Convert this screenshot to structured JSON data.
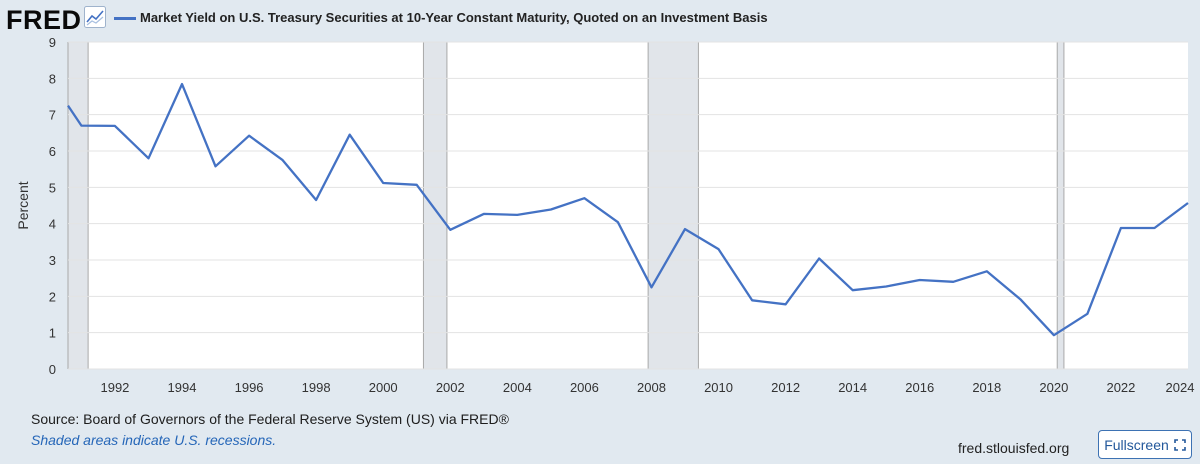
{
  "header": {
    "logo_text": "FRED",
    "series_title": "Market Yield on U.S. Treasury Securities at 10-Year Constant Maturity, Quoted on an Investment Basis"
  },
  "footer": {
    "source": "Source: Board of Governors of the Federal Reserve System (US) via FRED®",
    "note": "Shaded areas indicate U.S. recessions.",
    "site": "fred.stlouisfed.org",
    "fullscreen_label": "Fullscreen"
  },
  "colors": {
    "line": "#4472c4",
    "background": "#e1e9f0",
    "plot": "#ffffff",
    "recession": "#e1e5ea"
  },
  "icons": {
    "logo": "line-chart-icon",
    "fullscreen": "expand-icon"
  },
  "chart_data": {
    "type": "line",
    "title": "Market Yield on U.S. Treasury Securities at 10-Year Constant Maturity, Quoted on an Investment Basis",
    "xlabel": "",
    "ylabel": "Percent",
    "xlim": [
      1990.6,
      2024
    ],
    "ylim": [
      0,
      9
    ],
    "yticks": [
      0,
      1,
      2,
      3,
      4,
      5,
      6,
      7,
      8,
      9
    ],
    "xticks": [
      1992,
      1994,
      1996,
      1998,
      2000,
      2002,
      2004,
      2006,
      2008,
      2010,
      2012,
      2014,
      2016,
      2018,
      2020,
      2022,
      2024
    ],
    "grid": true,
    "recessions": [
      [
        1990.6,
        1991.2
      ],
      [
        2001.2,
        2001.9
      ],
      [
        2007.9,
        2009.4
      ],
      [
        2020.1,
        2020.3
      ]
    ],
    "series": [
      {
        "name": "Market Yield on U.S. Treasury Securities at 10-Year Constant Maturity, Quoted on an Investment Basis",
        "x": [
          1990.6,
          1991,
          1992,
          1993,
          1994,
          1995,
          1996,
          1997,
          1998,
          1999,
          2000,
          2001,
          2002,
          2003,
          2004,
          2005,
          2006,
          2007,
          2008,
          2009,
          2010,
          2011,
          2012,
          2013,
          2014,
          2015,
          2016,
          2017,
          2018,
          2019,
          2020,
          2021,
          2022,
          2023,
          2024
        ],
        "values": [
          7.25,
          6.7,
          6.69,
          5.8,
          7.84,
          5.58,
          6.42,
          5.75,
          4.65,
          6.45,
          5.12,
          5.07,
          3.83,
          4.27,
          4.24,
          4.39,
          4.7,
          4.04,
          2.25,
          3.85,
          3.3,
          1.89,
          1.78,
          3.04,
          2.17,
          2.27,
          2.45,
          2.4,
          2.69,
          1.92,
          0.93,
          1.52,
          3.88,
          3.88,
          4.57
        ]
      }
    ]
  }
}
